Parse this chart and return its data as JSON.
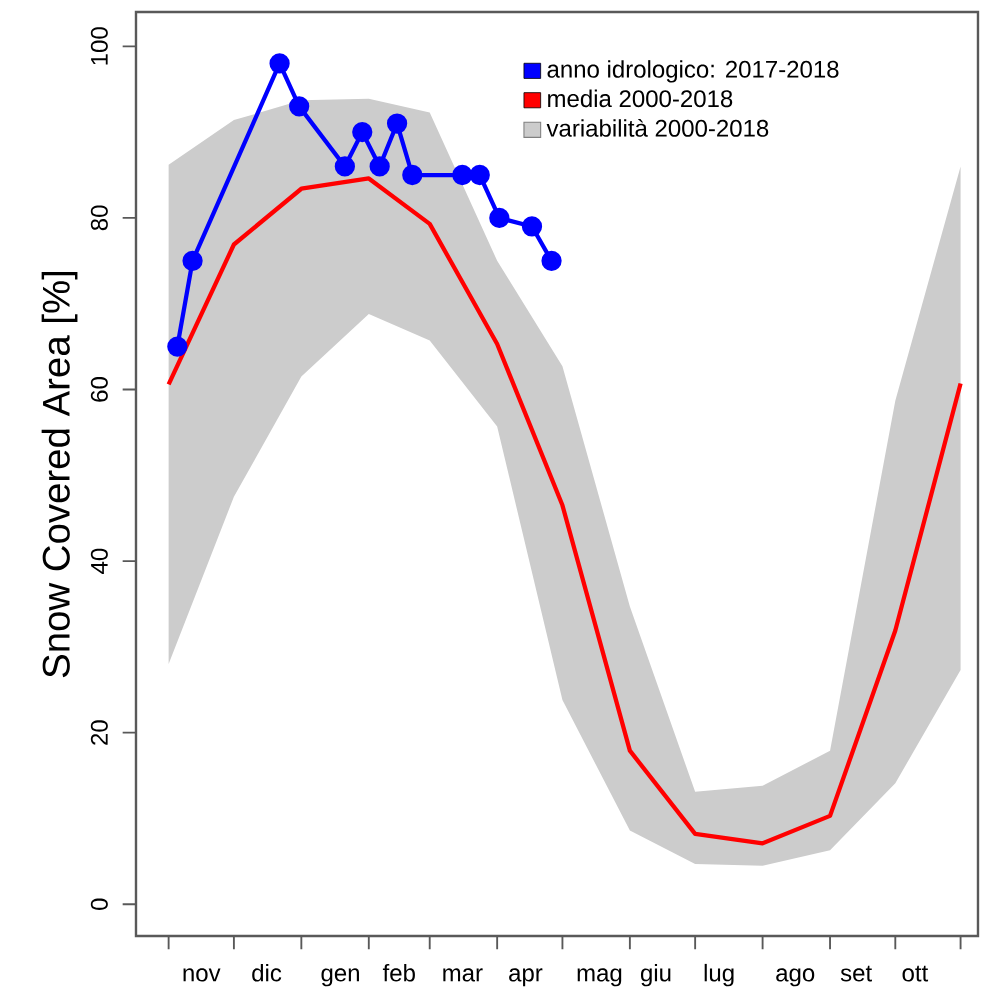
{
  "chart_data": {
    "type": "line",
    "ylabel": "Snow Covered Area [%]",
    "xlim": [
      "2017-10-17",
      "2018-11-08"
    ],
    "ylim": [
      -3.7,
      104
    ],
    "xticks": [
      {
        "value": "2017-11-01",
        "label": null
      },
      {
        "value": "2017-12-01",
        "label": null
      },
      {
        "value": "2018-01-01",
        "label": null
      },
      {
        "value": "2018-02-01",
        "label": null
      },
      {
        "value": "2018-03-01",
        "label": null
      },
      {
        "value": "2018-04-01",
        "label": null
      },
      {
        "value": "2018-05-01",
        "label": null
      },
      {
        "value": "2018-06-01",
        "label": null
      },
      {
        "value": "2018-07-01",
        "label": null
      },
      {
        "value": "2018-08-01",
        "label": null
      },
      {
        "value": "2018-09-01",
        "label": null
      },
      {
        "value": "2018-10-01",
        "label": null
      },
      {
        "value": "2018-10-31",
        "label": null
      },
      {
        "value": "2017-11-16",
        "label": "nov"
      },
      {
        "value": "2017-12-16",
        "label": "dic"
      },
      {
        "value": "2018-01-19",
        "label": "gen"
      },
      {
        "value": "2018-02-15",
        "label": "feb"
      },
      {
        "value": "2018-03-16",
        "label": "mar"
      },
      {
        "value": "2018-04-14",
        "label": "apr"
      },
      {
        "value": "2018-05-18",
        "label": "mag"
      },
      {
        "value": "2018-06-13",
        "label": "giu"
      },
      {
        "value": "2018-07-12",
        "label": "lug"
      },
      {
        "value": "2018-08-16",
        "label": "ago"
      },
      {
        "value": "2018-09-13",
        "label": "set"
      },
      {
        "value": "2018-10-10",
        "label": "ott"
      }
    ],
    "yticks": [
      0,
      20,
      40,
      60,
      80,
      100
    ],
    "grid": false,
    "legend": "top right",
    "series": [
      {
        "name": "anno idrologico: 2017-2018",
        "color": "#0000ff",
        "marker": "circle",
        "x": [
          "2017-11-05",
          "2017-11-12",
          "2017-12-22",
          "2017-12-31",
          "2018-01-21",
          "2018-01-29",
          "2018-02-06",
          "2018-02-14",
          "2018-02-21",
          "2018-03-16",
          "2018-03-24",
          "2018-04-02",
          "2018-04-17",
          "2018-04-26"
        ],
        "values": [
          65,
          75,
          98,
          93,
          86,
          90,
          86,
          91,
          85,
          85,
          85,
          80,
          79,
          75
        ]
      },
      {
        "name": "media 2000-2018",
        "color": "#ff0000",
        "marker": "none",
        "x": [
          "2017-11-01",
          "2017-12-01",
          "2018-01-01",
          "2018-02-01",
          "2018-03-01",
          "2018-04-01",
          "2018-05-01",
          "2018-06-01",
          "2018-07-01",
          "2018-08-01",
          "2018-09-01",
          "2018-10-01",
          "2018-10-31"
        ],
        "values": [
          60.6,
          76.9,
          83.4,
          84.6,
          79.3,
          65.3,
          46.5,
          17.9,
          8.2,
          7.1,
          10.3,
          31.9,
          60.7
        ],
        "lower": [
          28.0,
          47.5,
          61.5,
          68.8,
          65.7,
          55.7,
          23.8,
          8.6,
          4.7,
          4.5,
          6.3,
          14.1,
          27.3
        ],
        "upper": [
          86.2,
          91.4,
          93.7,
          93.9,
          92.3,
          75,
          62.7,
          34.7,
          13.1,
          13.8,
          17.9,
          58.7,
          86
        ]
      },
      {
        "name": "variabilità 2000-2018",
        "type": "area",
        "color": "#cccccc"
      }
    ]
  }
}
